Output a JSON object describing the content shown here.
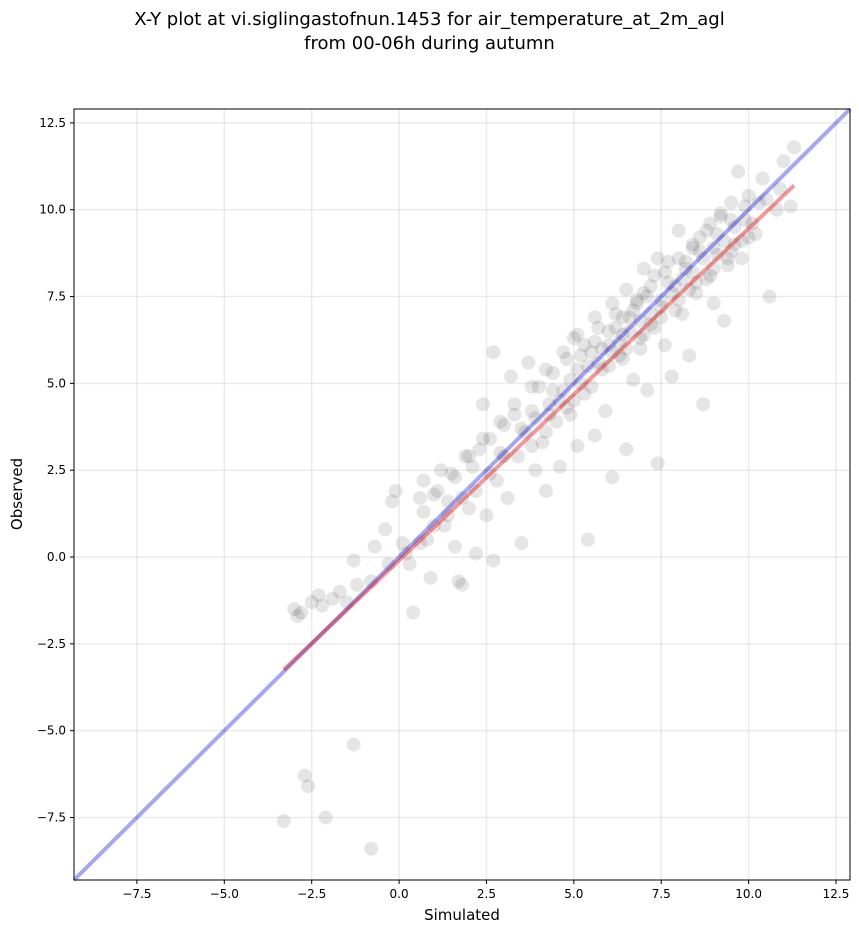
{
  "chart_data": {
    "type": "scatter",
    "title_lines": [
      "X-Y plot at vi.siglingastofnun.1453 for air_temperature_at_2m_agl",
      "from 00-06h during autumn"
    ],
    "xlabel": "Simulated",
    "ylabel": "Observed",
    "xlim": [
      -9.3,
      12.9
    ],
    "ylim": [
      -9.3,
      12.9
    ],
    "xticks": [
      -7.5,
      -5.0,
      -2.5,
      0.0,
      2.5,
      5.0,
      7.5,
      10.0,
      12.5
    ],
    "yticks": [
      -7.5,
      -5.0,
      -2.5,
      0.0,
      2.5,
      5.0,
      7.5,
      10.0,
      12.5
    ],
    "xtick_labels": [
      "−7.5",
      "−5.0",
      "−2.5",
      "0.0",
      "2.5",
      "5.0",
      "7.5",
      "10.0",
      "12.5"
    ],
    "ytick_labels": [
      "−7.5",
      "−5.0",
      "−2.5",
      "0.0",
      "2.5",
      "5.0",
      "7.5",
      "10.0",
      "12.5"
    ],
    "grid": true,
    "point_color": "#000000",
    "point_alpha": 0.1,
    "reference_line": {
      "color": "#0000dd",
      "alpha": 0.35,
      "points": [
        [
          -9.3,
          -9.3
        ],
        [
          12.9,
          12.9
        ]
      ]
    },
    "fit_line": {
      "color": "#dd0000",
      "alpha": 0.4,
      "points": [
        [
          -3.3,
          -3.25
        ],
        [
          11.3,
          10.7
        ]
      ]
    },
    "points": [
      [
        -3.3,
        -7.6
      ],
      [
        -2.7,
        -6.3
      ],
      [
        -2.6,
        -6.6
      ],
      [
        -2.1,
        -7.5
      ],
      [
        -1.3,
        -5.4
      ],
      [
        -0.8,
        -8.4
      ],
      [
        -3.0,
        -1.5
      ],
      [
        -2.9,
        -1.7
      ],
      [
        -2.8,
        -1.6
      ],
      [
        -2.5,
        -1.3
      ],
      [
        -2.3,
        -1.1
      ],
      [
        -2.2,
        -1.4
      ],
      [
        -1.9,
        -1.2
      ],
      [
        -1.7,
        -1.0
      ],
      [
        -1.5,
        -1.3
      ],
      [
        -1.2,
        -0.8
      ],
      [
        -1.3,
        -0.1
      ],
      [
        -0.7,
        0.3
      ],
      [
        -0.4,
        0.8
      ],
      [
        -0.2,
        1.6
      ],
      [
        -0.1,
        1.9
      ],
      [
        0.1,
        0.4
      ],
      [
        0.3,
        -0.2
      ],
      [
        0.4,
        -1.6
      ],
      [
        0.6,
        1.7
      ],
      [
        0.7,
        2.2
      ],
      [
        0.8,
        0.5
      ],
      [
        0.9,
        -0.6
      ],
      [
        1.0,
        1.8
      ],
      [
        1.2,
        2.5
      ],
      [
        1.3,
        0.9
      ],
      [
        1.4,
        1.6
      ],
      [
        1.5,
        2.4
      ],
      [
        1.6,
        0.3
      ],
      [
        1.7,
        -0.7
      ],
      [
        1.8,
        -0.8
      ],
      [
        1.9,
        2.9
      ],
      [
        2.0,
        1.4
      ],
      [
        2.1,
        2.6
      ],
      [
        2.2,
        0.1
      ],
      [
        2.3,
        3.1
      ],
      [
        2.4,
        4.4
      ],
      [
        2.5,
        1.2
      ],
      [
        2.6,
        3.4
      ],
      [
        2.7,
        5.9
      ],
      [
        2.7,
        -0.1
      ],
      [
        2.8,
        2.2
      ],
      [
        2.9,
        3.0
      ],
      [
        3.0,
        3.8
      ],
      [
        3.1,
        1.7
      ],
      [
        3.2,
        5.2
      ],
      [
        3.3,
        4.1
      ],
      [
        3.4,
        2.9
      ],
      [
        3.5,
        0.4
      ],
      [
        3.6,
        3.6
      ],
      [
        3.7,
        5.6
      ],
      [
        3.8,
        4.2
      ],
      [
        3.9,
        2.5
      ],
      [
        4.0,
        4.9
      ],
      [
        4.1,
        3.3
      ],
      [
        4.2,
        1.9
      ],
      [
        4.3,
        4.4
      ],
      [
        4.4,
        5.3
      ],
      [
        4.5,
        3.9
      ],
      [
        4.6,
        2.6
      ],
      [
        4.7,
        4.8
      ],
      [
        4.8,
        5.7
      ],
      [
        4.9,
        4.1
      ],
      [
        5.0,
        6.3
      ],
      [
        5.1,
        3.2
      ],
      [
        5.2,
        5.0
      ],
      [
        5.3,
        4.7
      ],
      [
        5.4,
        0.5
      ],
      [
        5.5,
        5.9
      ],
      [
        5.6,
        3.5
      ],
      [
        5.7,
        6.6
      ],
      [
        5.8,
        5.4
      ],
      [
        5.9,
        4.2
      ],
      [
        6.0,
        6.1
      ],
      [
        6.1,
        2.3
      ],
      [
        6.2,
        7.0
      ],
      [
        6.3,
        5.8
      ],
      [
        6.4,
        6.4
      ],
      [
        6.5,
        3.1
      ],
      [
        6.6,
        6.9
      ],
      [
        6.7,
        5.1
      ],
      [
        6.8,
        7.3
      ],
      [
        6.9,
        6.0
      ],
      [
        7.0,
        7.6
      ],
      [
        7.1,
        4.8
      ],
      [
        7.2,
        6.7
      ],
      [
        7.3,
        8.1
      ],
      [
        7.4,
        2.7
      ],
      [
        7.5,
        7.2
      ],
      [
        7.6,
        6.1
      ],
      [
        7.7,
        8.5
      ],
      [
        7.8,
        5.2
      ],
      [
        7.9,
        7.8
      ],
      [
        8.0,
        9.4
      ],
      [
        8.1,
        7.0
      ],
      [
        8.2,
        8.3
      ],
      [
        8.3,
        5.8
      ],
      [
        8.4,
        8.9
      ],
      [
        8.5,
        7.6
      ],
      [
        8.6,
        9.2
      ],
      [
        8.7,
        4.4
      ],
      [
        8.8,
        8.0
      ],
      [
        8.9,
        9.6
      ],
      [
        9.0,
        7.3
      ],
      [
        9.1,
        8.7
      ],
      [
        9.2,
        9.9
      ],
      [
        9.3,
        6.8
      ],
      [
        9.4,
        8.4
      ],
      [
        9.5,
        10.2
      ],
      [
        9.6,
        9.0
      ],
      [
        9.7,
        11.1
      ],
      [
        9.8,
        8.6
      ],
      [
        9.9,
        9.7
      ],
      [
        10.0,
        10.4
      ],
      [
        10.2,
        9.3
      ],
      [
        10.4,
        10.9
      ],
      [
        10.6,
        7.5
      ],
      [
        10.8,
        10.0
      ],
      [
        11.0,
        11.4
      ],
      [
        11.2,
        10.1
      ],
      [
        11.3,
        11.8
      ],
      [
        4.9,
        5.1
      ],
      [
        5.4,
        5.5
      ],
      [
        5.8,
        6.0
      ],
      [
        6.1,
        5.9
      ],
      [
        6.3,
        6.2
      ],
      [
        6.6,
        6.5
      ],
      [
        6.9,
        6.8
      ],
      [
        7.2,
        7.0
      ],
      [
        7.5,
        7.4
      ],
      [
        7.8,
        7.6
      ],
      [
        8.1,
        8.0
      ],
      [
        8.4,
        8.2
      ],
      [
        8.7,
        8.6
      ],
      [
        9.0,
        8.9
      ],
      [
        9.3,
        9.1
      ],
      [
        9.6,
        9.5
      ],
      [
        5.2,
        5.8
      ],
      [
        5.6,
        6.2
      ],
      [
        6.0,
        6.5
      ],
      [
        6.4,
        6.9
      ],
      [
        6.8,
        7.4
      ],
      [
        7.2,
        7.8
      ],
      [
        7.6,
        8.2
      ],
      [
        8.0,
        8.6
      ],
      [
        8.4,
        9.0
      ],
      [
        8.8,
        9.4
      ],
      [
        9.2,
        9.8
      ],
      [
        5.0,
        4.5
      ],
      [
        5.5,
        4.9
      ],
      [
        6.0,
        5.5
      ],
      [
        6.5,
        6.0
      ],
      [
        7.0,
        6.4
      ],
      [
        7.5,
        6.9
      ],
      [
        8.0,
        7.4
      ],
      [
        8.5,
        7.9
      ],
      [
        9.0,
        8.3
      ],
      [
        9.5,
        8.8
      ],
      [
        10.0,
        9.2
      ],
      [
        3.5,
        3.7
      ],
      [
        3.9,
        4.0
      ],
      [
        4.3,
        4.1
      ],
      [
        4.6,
        4.5
      ],
      [
        4.2,
        3.6
      ],
      [
        3.8,
        3.2
      ],
      [
        3.0,
        2.9
      ],
      [
        2.6,
        2.4
      ],
      [
        2.2,
        1.9
      ],
      [
        1.8,
        1.7
      ],
      [
        1.4,
        1.2
      ],
      [
        1.0,
        0.9
      ],
      [
        0.6,
        0.4
      ],
      [
        0.2,
        0.1
      ],
      [
        -0.3,
        -0.2
      ],
      [
        -0.8,
        -0.7
      ],
      [
        6.2,
        6.6
      ],
      [
        6.7,
        7.1
      ],
      [
        7.1,
        7.5
      ],
      [
        7.7,
        7.9
      ],
      [
        8.2,
        8.5
      ],
      [
        8.6,
        8.8
      ],
      [
        9.1,
        9.3
      ],
      [
        9.5,
        9.7
      ],
      [
        9.9,
        10.1
      ],
      [
        10.3,
        10.2
      ],
      [
        5.3,
        6.1
      ],
      [
        5.7,
        5.6
      ],
      [
        4.4,
        4.8
      ],
      [
        4.8,
        4.3
      ],
      [
        5.1,
        5.4
      ],
      [
        6.4,
        5.7
      ],
      [
        6.9,
        6.3
      ],
      [
        7.3,
        6.6
      ],
      [
        7.9,
        7.1
      ],
      [
        8.3,
        7.7
      ],
      [
        8.9,
        8.1
      ],
      [
        9.4,
        8.6
      ],
      [
        9.8,
        9.1
      ],
      [
        10.1,
        9.6
      ],
      [
        10.5,
        10.3
      ],
      [
        10.9,
        10.6
      ],
      [
        7.4,
        8.6
      ],
      [
        7.0,
        8.3
      ],
      [
        6.5,
        7.7
      ],
      [
        6.1,
        7.3
      ],
      [
        5.6,
        6.9
      ],
      [
        5.1,
        6.4
      ],
      [
        4.7,
        5.9
      ],
      [
        4.2,
        5.4
      ],
      [
        3.8,
        4.9
      ],
      [
        3.3,
        4.4
      ],
      [
        2.9,
        3.9
      ],
      [
        2.4,
        3.4
      ],
      [
        2.0,
        2.9
      ],
      [
        1.6,
        2.3
      ],
      [
        1.1,
        1.9
      ],
      [
        0.7,
        1.3
      ]
    ]
  }
}
